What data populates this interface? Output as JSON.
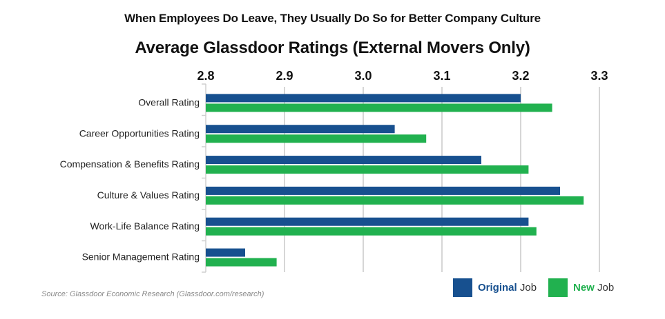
{
  "chart_data": {
    "type": "bar",
    "orientation": "horizontal",
    "suptitle": "When Employees Do Leave, They Usually Do So for Better Company Culture",
    "title": "Average Glassdoor Ratings (External Movers Only)",
    "xlabel": "",
    "ylabel": "",
    "xlim": [
      2.8,
      3.3
    ],
    "xticks": [
      "2.8",
      "2.9",
      "3.0",
      "3.1",
      "3.2",
      "3.3"
    ],
    "tick_values": [
      2.8,
      2.9,
      3.0,
      3.1,
      3.2,
      3.3
    ],
    "xaxis_position": "top",
    "grid": "vertical",
    "categories": [
      "Overall Rating",
      "Career Opportunities Rating",
      "Compensation & Benefits Rating",
      "Culture & Values Rating",
      "Work-Life Balance Rating",
      "Senior Management Rating"
    ],
    "series": [
      {
        "name": "Original Job",
        "name_bold": "Original",
        "name_rest": " Job",
        "color": "#17508f",
        "values": [
          3.2,
          3.04,
          3.15,
          3.25,
          3.21,
          2.85
        ]
      },
      {
        "name": "New Job",
        "name_bold": "New",
        "name_rest": " Job",
        "color": "#21b14f",
        "values": [
          3.24,
          3.08,
          3.21,
          3.28,
          3.22,
          2.89
        ]
      }
    ],
    "legend_position": "bottom-right",
    "source": "Source: Glassdoor Economic Research (Glassdoor.com/research)"
  }
}
